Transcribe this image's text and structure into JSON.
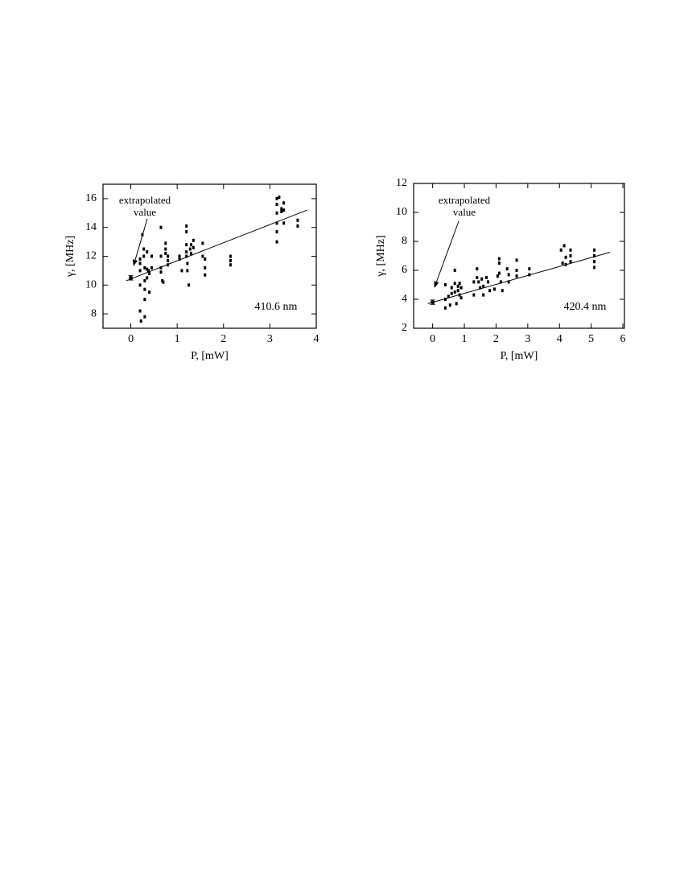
{
  "chart_data": [
    {
      "type": "scatter",
      "x_label": "P, [mW]",
      "y_label": "γ, [MHz]",
      "annotation_lines": [
        "extrapolated",
        "value"
      ],
      "label": "410.6 nm",
      "color": "#000000",
      "xlim": [
        -0.6,
        4
      ],
      "ylim": [
        7,
        17
      ],
      "xticks": [
        0,
        1,
        2,
        3,
        4
      ],
      "yticks": [
        8,
        10,
        12,
        14,
        16
      ],
      "x": [
        0.2,
        0.2,
        0.2,
        0.2,
        0.2,
        0.22,
        0.25,
        0.28,
        0.28,
        0.3,
        0.3,
        0.3,
        0.3,
        0.3,
        0.35,
        0.35,
        0.35,
        0.38,
        0.4,
        0.4,
        0.45,
        0.45,
        0.65,
        0.65,
        0.65,
        0.65,
        0.68,
        0.7,
        0.75,
        0.75,
        0.75,
        0.8,
        0.8,
        0.8,
        1.05,
        1.05,
        1.1,
        1.2,
        1.2,
        1.2,
        1.2,
        1.2,
        1.22,
        1.22,
        1.25,
        1.28,
        1.3,
        1.3,
        1.35,
        1.35,
        1.55,
        1.55,
        1.6,
        1.6,
        1.6,
        2.15,
        2.15,
        2.15,
        3.15,
        3.15,
        3.15,
        3.15,
        3.15,
        3.15,
        3.2,
        3.25,
        3.25,
        3.3,
        3.3,
        3.3,
        3.6,
        3.6
      ],
      "values": [
        11.8,
        11.5,
        11.0,
        10.0,
        8.2,
        7.5,
        13.5,
        12.5,
        12.0,
        11.2,
        10.3,
        9.7,
        9.0,
        7.8,
        12.3,
        11.1,
        10.5,
        11.0,
        10.8,
        9.5,
        12.0,
        11.2,
        14.0,
        12.0,
        11.2,
        10.9,
        10.3,
        10.2,
        12.9,
        12.5,
        12.2,
        12.0,
        11.7,
        11.4,
        12.0,
        11.8,
        11.0,
        14.1,
        13.7,
        12.8,
        12.3,
        12.0,
        11.5,
        11.0,
        10.0,
        12.5,
        12.8,
        12.2,
        13.1,
        12.6,
        12.9,
        12.0,
        11.8,
        11.2,
        10.7,
        12.0,
        11.7,
        11.4,
        16.0,
        15.6,
        15.0,
        14.3,
        13.7,
        13.0,
        16.1,
        15.3,
        15.1,
        15.7,
        15.2,
        14.3,
        14.5,
        14.1
      ],
      "fit": {
        "x": [
          -0.1,
          3.8
        ],
        "values": [
          10.3,
          15.2
        ]
      },
      "extrapolated": {
        "x": 0,
        "value": 10.5,
        "error": 0.15
      }
    },
    {
      "type": "scatter",
      "x_label": "P, [mW]",
      "y_label": "γ, [MHz]",
      "annotation_lines": [
        "extrapolated",
        "value"
      ],
      "label": "420.4 nm",
      "color": "#000000",
      "xlim": [
        -0.6,
        6.05
      ],
      "ylim": [
        2,
        12
      ],
      "xticks": [
        0,
        1,
        2,
        3,
        4,
        5,
        6
      ],
      "yticks": [
        2,
        4,
        6,
        8,
        10,
        12
      ],
      "x": [
        0.4,
        0.4,
        0.4,
        0.5,
        0.55,
        0.6,
        0.6,
        0.7,
        0.7,
        0.7,
        0.75,
        0.8,
        0.8,
        0.85,
        0.85,
        0.9,
        0.9,
        1.3,
        1.3,
        1.4,
        1.4,
        1.45,
        1.5,
        1.55,
        1.6,
        1.6,
        1.7,
        1.75,
        1.8,
        1.95,
        2.05,
        2.1,
        2.1,
        2.1,
        2.15,
        2.2,
        2.35,
        2.4,
        2.4,
        2.65,
        2.65,
        2.65,
        3.05,
        3.05,
        4.05,
        4.1,
        4.15,
        4.2,
        4.2,
        4.35,
        4.35,
        4.35,
        5.1,
        5.1,
        5.1,
        5.1
      ],
      "values": [
        5.0,
        4.0,
        3.4,
        4.2,
        3.6,
        4.8,
        4.4,
        6.0,
        5.1,
        4.5,
        3.7,
        4.9,
        4.6,
        5.1,
        4.3,
        4.8,
        4.1,
        5.2,
        4.3,
        6.1,
        5.5,
        5.2,
        4.8,
        5.4,
        4.9,
        4.3,
        5.5,
        5.2,
        4.6,
        4.7,
        5.6,
        6.8,
        6.5,
        5.8,
        5.2,
        4.6,
        6.1,
        5.7,
        5.2,
        6.7,
        6.0,
        5.6,
        6.1,
        5.7,
        7.4,
        6.5,
        7.7,
        6.9,
        6.4,
        7.4,
        7.0,
        6.6,
        7.4,
        7.0,
        6.6,
        6.2
      ],
      "fit": {
        "x": [
          -0.15,
          5.6
        ],
        "values": [
          3.7,
          7.25
        ]
      },
      "extrapolated": {
        "x": 0,
        "value": 3.8,
        "error": 0.15
      }
    }
  ]
}
